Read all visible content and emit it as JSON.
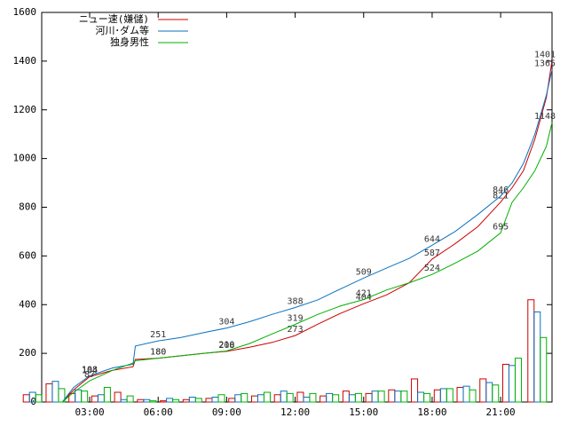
{
  "chart_data": {
    "type": "line",
    "x": [
      1.8,
      2.3,
      3,
      4,
      4.9,
      5,
      6,
      7,
      8,
      9,
      10,
      11,
      12,
      13,
      14,
      15,
      16,
      17,
      18,
      19,
      20,
      21,
      21.5,
      22,
      22.5,
      23,
      23.25
    ],
    "series": [
      {
        "name": "ニュー速(嫌儲)",
        "color": "#cc0000",
        "values": [
          0,
          50,
          104,
          130,
          145,
          175,
          180,
          190,
          200,
          208,
          225,
          245,
          273,
          320,
          365,
          404,
          440,
          490,
          587,
          650,
          720,
          821,
          880,
          950,
          1080,
          1250,
          1401
        ],
        "hourly_values": [
          30,
          75,
          35,
          25,
          40,
          10,
          5,
          10,
          15,
          15,
          25,
          30,
          40,
          25,
          45,
          35,
          50,
          95,
          50,
          60,
          95,
          155,
          420
        ]
      },
      {
        "name": "河川･ダム等",
        "color": "#0a72c0",
        "values": [
          0,
          60,
          108,
          140,
          155,
          230,
          251,
          265,
          285,
          304,
          330,
          360,
          388,
          420,
          465,
          509,
          550,
          590,
          644,
          700,
          770,
          846,
          900,
          980,
          1100,
          1260,
          1365
        ],
        "hourly_values": [
          40,
          85,
          50,
          30,
          10,
          10,
          15,
          20,
          20,
          30,
          30,
          45,
          20,
          35,
          30,
          45,
          45,
          40,
          55,
          65,
          80,
          150,
          370
        ]
      },
      {
        "name": "独身男性",
        "color": "#00b000",
        "values": [
          0,
          40,
          87,
          130,
          160,
          170,
          180,
          190,
          200,
          210,
          240,
          280,
          319,
          360,
          395,
          421,
          460,
          490,
          524,
          570,
          620,
          695,
          820,
          880,
          950,
          1050,
          1148
        ],
        "hourly_values": [
          30,
          55,
          45,
          60,
          25,
          5,
          10,
          15,
          30,
          35,
          40,
          35,
          35,
          30,
          35,
          45,
          45,
          35,
          55,
          50,
          70,
          180,
          265
        ]
      }
    ],
    "hourly_x": [
      0.5,
      1.5,
      2.5,
      3.5,
      4.5,
      5.5,
      6.5,
      7.5,
      8.5,
      9.5,
      10.5,
      11.5,
      12.5,
      13.5,
      14.5,
      15.5,
      16.5,
      17.5,
      18.5,
      19.5,
      20.5,
      21.5,
      22.6
    ],
    "xlim": [
      0.9,
      23.25
    ],
    "xticks": [
      {
        "value": 3,
        "label": "03:00"
      },
      {
        "value": 6,
        "label": "06:00"
      },
      {
        "value": 9,
        "label": "09:00"
      },
      {
        "value": 12,
        "label": "12:00"
      },
      {
        "value": 15,
        "label": "15:00"
      },
      {
        "value": 18,
        "label": "18:00"
      },
      {
        "value": 21,
        "label": "21:00"
      }
    ],
    "ylim": [
      0,
      1600
    ],
    "yticks": [
      0,
      200,
      400,
      600,
      800,
      1000,
      1200,
      1400,
      1600
    ],
    "legend": "top-left"
  }
}
